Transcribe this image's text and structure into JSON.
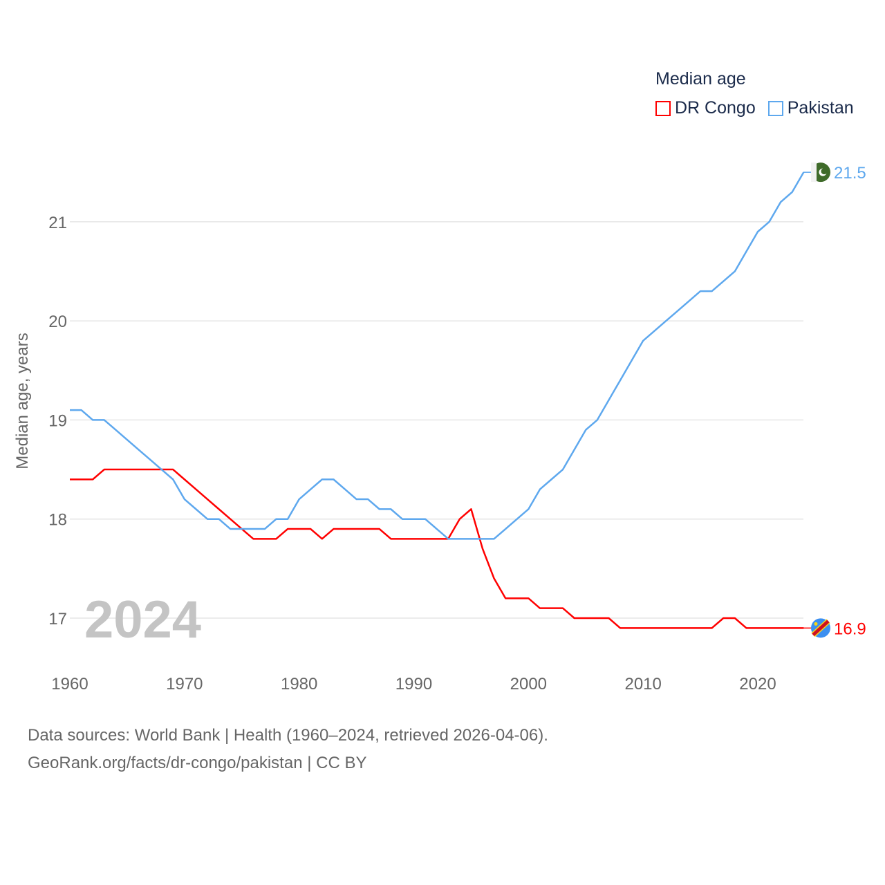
{
  "chart_data": {
    "type": "line",
    "title": "Median age",
    "ylabel": "Median age, years",
    "xlabel": "",
    "xlim": [
      1960,
      2024
    ],
    "ylim": [
      16.5,
      21.9
    ],
    "x_ticks": [
      1960,
      1970,
      1980,
      1990,
      2000,
      2010,
      2020
    ],
    "y_ticks": [
      17,
      18,
      19,
      20,
      21
    ],
    "grid": true,
    "legend_position": "top-right",
    "year_label": "2024",
    "x": [
      1960,
      1961,
      1962,
      1963,
      1964,
      1965,
      1966,
      1967,
      1968,
      1969,
      1970,
      1971,
      1972,
      1973,
      1974,
      1975,
      1976,
      1977,
      1978,
      1979,
      1980,
      1981,
      1982,
      1983,
      1984,
      1985,
      1986,
      1987,
      1988,
      1989,
      1990,
      1991,
      1992,
      1993,
      1994,
      1995,
      1996,
      1997,
      1998,
      1999,
      2000,
      2001,
      2002,
      2003,
      2004,
      2005,
      2006,
      2007,
      2008,
      2009,
      2010,
      2011,
      2012,
      2013,
      2014,
      2015,
      2016,
      2017,
      2018,
      2019,
      2020,
      2021,
      2022,
      2023,
      2024
    ],
    "series": [
      {
        "name": "DR Congo",
        "color": "#ff0000",
        "end_label": "16.9",
        "icon": "dr-congo-flag-icon",
        "values": [
          18.4,
          18.4,
          18.4,
          18.5,
          18.5,
          18.5,
          18.5,
          18.5,
          18.5,
          18.5,
          18.4,
          18.3,
          18.2,
          18.1,
          18.0,
          17.9,
          17.8,
          17.8,
          17.8,
          17.9,
          17.9,
          17.9,
          17.8,
          17.9,
          17.9,
          17.9,
          17.9,
          17.9,
          17.8,
          17.8,
          17.8,
          17.8,
          17.8,
          17.8,
          18.0,
          18.1,
          17.7,
          17.4,
          17.2,
          17.2,
          17.2,
          17.1,
          17.1,
          17.1,
          17.0,
          17.0,
          17.0,
          17.0,
          16.9,
          16.9,
          16.9,
          16.9,
          16.9,
          16.9,
          16.9,
          16.9,
          16.9,
          17.0,
          17.0,
          16.9,
          16.9,
          16.9,
          16.9,
          16.9,
          16.9
        ]
      },
      {
        "name": "Pakistan",
        "color": "#5ea8ee",
        "end_label": "21.5",
        "icon": "pakistan-flag-icon",
        "values": [
          19.1,
          19.1,
          19.0,
          19.0,
          18.9,
          18.8,
          18.7,
          18.6,
          18.5,
          18.4,
          18.2,
          18.1,
          18.0,
          18.0,
          17.9,
          17.9,
          17.9,
          17.9,
          18.0,
          18.0,
          18.2,
          18.3,
          18.4,
          18.4,
          18.3,
          18.2,
          18.2,
          18.1,
          18.1,
          18.0,
          18.0,
          18.0,
          17.9,
          17.8,
          17.8,
          17.8,
          17.8,
          17.8,
          17.9,
          18.0,
          18.1,
          18.3,
          18.4,
          18.5,
          18.7,
          18.9,
          19.0,
          19.2,
          19.4,
          19.6,
          19.8,
          19.9,
          20.0,
          20.1,
          20.2,
          20.3,
          20.3,
          20.4,
          20.5,
          20.7,
          20.9,
          21.0,
          21.2,
          21.3,
          21.5
        ]
      }
    ]
  },
  "footer": {
    "line1": "Data sources: World Bank | Health (1960–2024, retrieved 2026-04-06).",
    "line2": "GeoRank.org/facts/dr-congo/pakistan | CC BY"
  }
}
